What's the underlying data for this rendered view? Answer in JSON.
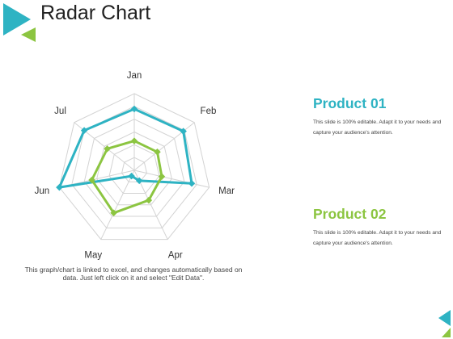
{
  "slide": {
    "title": "Radar Chart",
    "caption": "This graph/chart is linked to excel, and changes automatically based on data. Just left click on it and select \"Edit Data\"."
  },
  "colors": {
    "teal": "#2eb3c3",
    "green": "#8cc541",
    "grid": "#d3d3d3",
    "corner_dark": "#2eb3c3",
    "corner_light": "#8cc541"
  },
  "products": [
    {
      "heading": "Product 01",
      "text": "This slide is 100% editable. Adapt it to your needs and capture your audience's attention.",
      "color": "#2eb3c3"
    },
    {
      "heading": "Product 02",
      "text": "This slide is 100% editable. Adapt it to your needs and capture your audience's attention.",
      "color": "#8cc541"
    }
  ],
  "chart_data": {
    "type": "radar",
    "categories": [
      "Jan",
      "Feb",
      "Mar",
      "Apr",
      "May",
      "Jun",
      "Jul"
    ],
    "rmax": 6,
    "rings": 6,
    "series": [
      {
        "name": "Product 01",
        "color": "#2eb3c3",
        "values": [
          4.8,
          4.9,
          4.6,
          0.9,
          0.5,
          6.0,
          5.0
        ]
      },
      {
        "name": "Product 02",
        "color": "#8cc541",
        "values": [
          2.3,
          2.3,
          2.2,
          2.6,
          3.7,
          3.4,
          2.7
        ]
      }
    ]
  }
}
